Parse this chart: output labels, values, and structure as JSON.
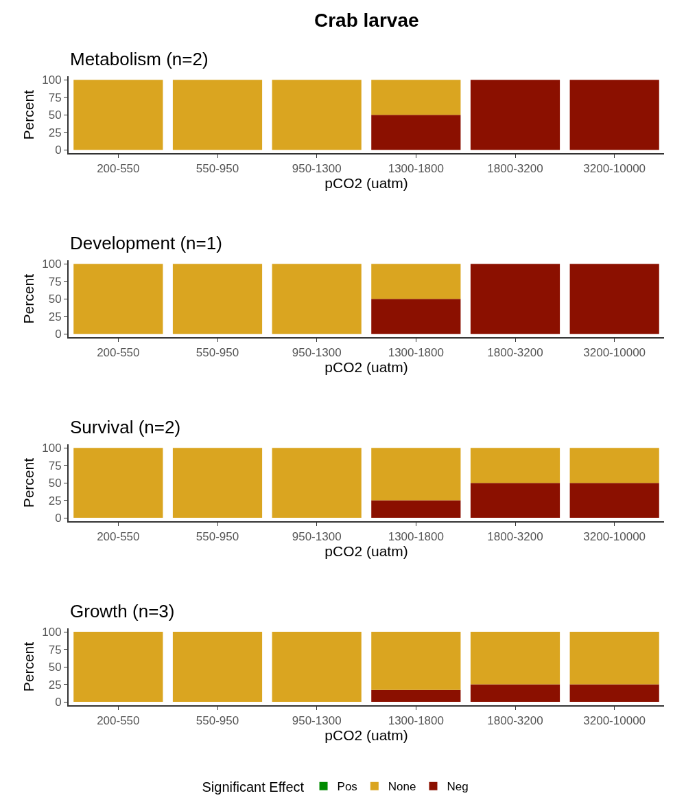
{
  "chart_data": [
    {
      "type": "bar",
      "title": "Crab larvae",
      "subtitle": "Metabolism (n=2)",
      "xlabel": "pCO2 (uatm)",
      "ylabel": "Percent",
      "categories": [
        "200-550",
        "550-950",
        "950-1300",
        "1300-1800",
        "1800-3200",
        "3200-10000"
      ],
      "stacked": true,
      "ylim": [
        -5,
        105
      ],
      "yticks": [
        0,
        25,
        50,
        75,
        100
      ],
      "series": [
        {
          "color": "#8b1000",
          "values": [
            0,
            0,
            0,
            50,
            100,
            100
          ]
        },
        {
          "color": "#daa520",
          "values": [
            100,
            100,
            100,
            50,
            0,
            0
          ]
        },
        {
          "color": "#008b00",
          "values": [
            0,
            0,
            0,
            0,
            0,
            0
          ]
        }
      ]
    },
    {
      "type": "bar",
      "subtitle": "Development (n=1)",
      "xlabel": "pCO2 (uatm)",
      "ylabel": "Percent",
      "categories": [
        "200-550",
        "550-950",
        "950-1300",
        "1300-1800",
        "1800-3200",
        "3200-10000"
      ],
      "stacked": true,
      "ylim": [
        -5,
        105
      ],
      "yticks": [
        0,
        25,
        50,
        75,
        100
      ],
      "series": [
        {
          "color": "#8b1000",
          "values": [
            0,
            0,
            0,
            50,
            100,
            100
          ]
        },
        {
          "color": "#daa520",
          "values": [
            100,
            100,
            100,
            50,
            0,
            0
          ]
        },
        {
          "color": "#008b00",
          "values": [
            0,
            0,
            0,
            0,
            0,
            0
          ]
        }
      ]
    },
    {
      "type": "bar",
      "subtitle": "Survival (n=2)",
      "xlabel": "pCO2 (uatm)",
      "ylabel": "Percent",
      "categories": [
        "200-550",
        "550-950",
        "950-1300",
        "1300-1800",
        "1800-3200",
        "3200-10000"
      ],
      "stacked": true,
      "ylim": [
        -5,
        105
      ],
      "yticks": [
        0,
        25,
        50,
        75,
        100
      ],
      "series": [
        {
          "color": "#8b1000",
          "values": [
            0,
            0,
            0,
            25,
            50,
            50
          ]
        },
        {
          "color": "#daa520",
          "values": [
            100,
            100,
            100,
            75,
            50,
            50
          ]
        },
        {
          "color": "#008b00",
          "values": [
            0,
            0,
            0,
            0,
            0,
            0
          ]
        }
      ]
    },
    {
      "type": "bar",
      "subtitle": "Growth (n=3)",
      "xlabel": "pCO2 (uatm)",
      "ylabel": "Percent",
      "categories": [
        "200-550",
        "550-950",
        "950-1300",
        "1300-1800",
        "1800-3200",
        "3200-10000"
      ],
      "stacked": true,
      "ylim": [
        -5,
        105
      ],
      "yticks": [
        0,
        25,
        50,
        75,
        100
      ],
      "legend": "bottom",
      "legend_title": "Significant Effect",
      "series": [
        {
          "name": "Neg",
          "color": "#8b1000",
          "values": [
            0,
            0,
            0,
            17,
            25,
            25
          ]
        },
        {
          "name": "None",
          "color": "#daa520",
          "values": [
            100,
            100,
            100,
            83,
            75,
            75
          ]
        },
        {
          "name": "Pos",
          "color": "#008b00",
          "values": [
            0,
            0,
            0,
            0,
            0,
            0
          ]
        }
      ]
    }
  ]
}
